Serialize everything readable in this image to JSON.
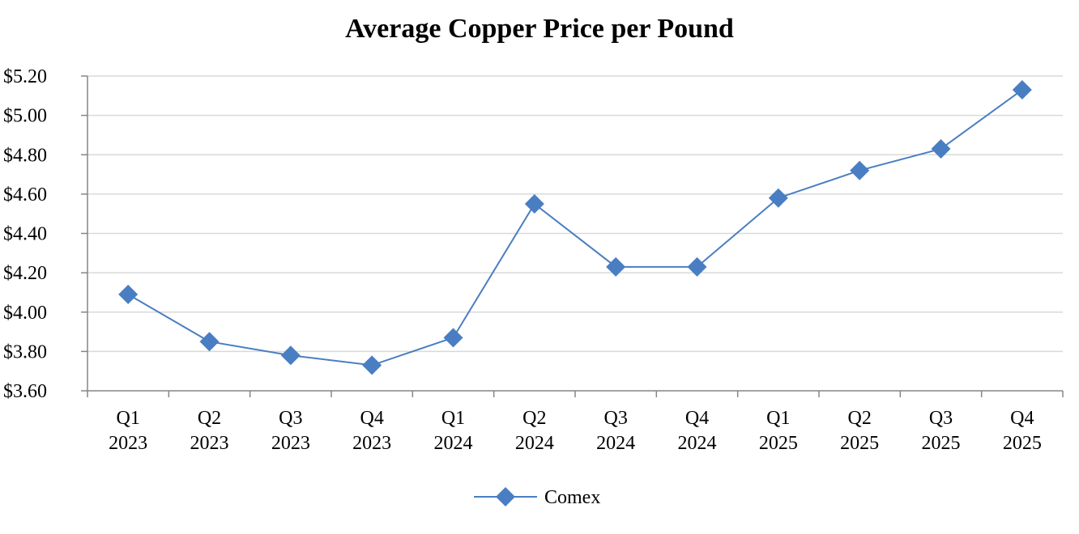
{
  "chart_data": {
    "type": "line",
    "title": "Average Copper Price per Pound",
    "xlabel": "",
    "ylabel": "",
    "categories": [
      [
        "Q1",
        "2023"
      ],
      [
        "Q2",
        "2023"
      ],
      [
        "Q3",
        "2023"
      ],
      [
        "Q4",
        "2023"
      ],
      [
        "Q1",
        "2024"
      ],
      [
        "Q2",
        "2024"
      ],
      [
        "Q3",
        "2024"
      ],
      [
        "Q4",
        "2024"
      ],
      [
        "Q1",
        "2025"
      ],
      [
        "Q2",
        "2025"
      ],
      [
        "Q3",
        "2025"
      ],
      [
        "Q4",
        "2025"
      ]
    ],
    "series": [
      {
        "name": "Comex",
        "color": "#4a7ec2",
        "marker": "diamond",
        "values": [
          4.09,
          3.85,
          3.78,
          3.73,
          3.87,
          4.55,
          4.23,
          4.23,
          4.58,
          4.72,
          4.83,
          5.13
        ]
      }
    ],
    "ylim": [
      3.6,
      5.2
    ],
    "yticks": [
      "$3.60",
      "$3.80",
      "$4.00",
      "$4.20",
      "$4.40",
      "$4.60",
      "$4.80",
      "$5.00",
      "$5.20"
    ],
    "ytick_values": [
      3.6,
      3.8,
      4.0,
      4.2,
      4.4,
      4.6,
      4.8,
      5.0,
      5.2
    ],
    "grid": true,
    "grid_color": "#d9d9d9",
    "axis_color": "#868686",
    "legend_position": "bottom-center"
  }
}
